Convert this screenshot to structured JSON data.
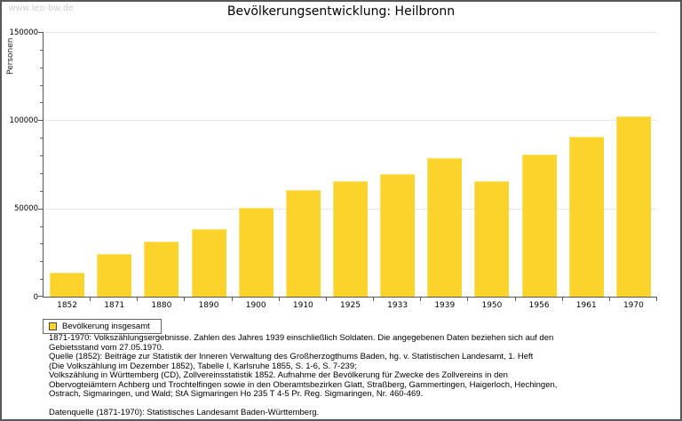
{
  "page": {
    "watermark": "www.leo-bw.de",
    "title": "Bevölkerungsentwicklung: Heilbronn"
  },
  "chart_data": {
    "type": "bar",
    "title": "Bevölkerungsentwicklung: Heilbronn",
    "xlabel": "",
    "ylabel": "Personen",
    "categories": [
      "1852",
      "1871",
      "1880",
      "1890",
      "1900",
      "1910",
      "1925",
      "1933",
      "1939",
      "1950",
      "1956",
      "1961",
      "1970"
    ],
    "series": [
      {
        "name": "Bevölkerung insgesamt",
        "values": [
          13500,
          24000,
          31000,
          38500,
          50500,
          60500,
          65500,
          69500,
          78500,
          65500,
          80500,
          90500,
          102000
        ]
      }
    ],
    "ylim": [
      0,
      150000
    ],
    "ytick_major": [
      0,
      50000,
      100000,
      150000
    ],
    "ytick_minor_step": 10000,
    "grid": "horizontal-major",
    "legend_position": "bottom-left",
    "bar_color": "#fbd32b"
  },
  "legend": {
    "label": "Bevölkerung insgesamt",
    "swatch_color": "#fbd32b"
  },
  "footnote": {
    "lines": [
      "1871-1970: Volkszählungsergebnisse. Zahlen des Jahres 1939 einschließlich Soldaten. Die angegebenen Daten beziehen sich auf den",
      "Gebietsstand vom 27.05.1970.",
      "Quelle (1852): Beiträge zur Statistik der Inneren Verwaltung des Großherzogthums Baden, hg. v. Statistischen Landesamt, 1. Heft",
      "(Die Volkszählung im Dezember 1852), Tabelle I, Karlsruhe 1855, S. 1-6, S. 7-239;",
      "Volkszählung in Württemberg (CD), Zollvereinsstatistik 1852. Aufnahme der Bevölkerung für Zwecke des Zollvereins in den",
      "Obervogteiämtern Achberg und Trochtelfingen sowie in den Oberamtsbezirken Glatt, Straßberg, Gammertingen, Haigerloch, Hechingen,",
      "Ostrach, Sigmaringen, und Wald; StA Sigmaringen Ho 235 T 4-5 Pr. Reg. Sigmaringen, Nr. 460-469.",
      "",
      "Datenquelle (1871-1970): Statistisches Landesamt Baden-Württemberg."
    ]
  },
  "colors": {
    "bar": "#fbd32b",
    "axis": "#555555",
    "gridline": "#e7e7e7",
    "watermark": "#cccccc",
    "text": "#000000",
    "border": "#58585a"
  }
}
